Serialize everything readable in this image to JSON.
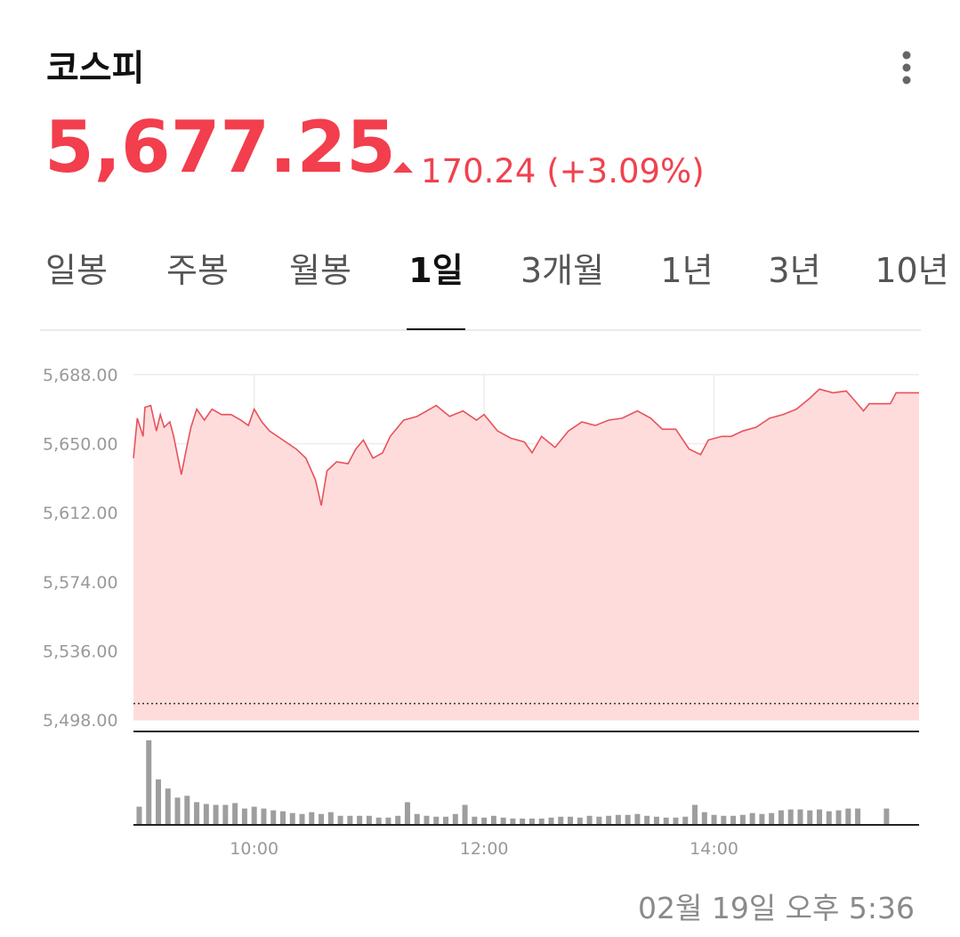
{
  "header": {
    "title": "코스피",
    "price": "5,677.25",
    "change": "170.24 (+3.09%)"
  },
  "tabs": {
    "items": [
      "일봉",
      "주봉",
      "월봉",
      "1일",
      "3개월",
      "1년",
      "3년",
      "10년"
    ],
    "selected": 3
  },
  "chart_data": {
    "type": "line",
    "x": [
      537,
      539,
      542,
      543,
      546,
      549,
      551,
      553,
      556,
      558,
      562,
      565,
      567,
      570,
      574,
      578,
      583,
      588,
      593,
      597,
      600,
      604,
      608,
      615,
      622,
      627,
      632,
      635,
      638,
      643,
      649,
      653,
      657,
      662,
      667,
      671,
      678,
      685,
      695,
      702,
      709,
      716,
      720,
      727,
      734,
      741,
      745,
      750,
      757,
      764,
      771,
      778,
      785,
      792,
      800,
      807,
      813,
      820,
      827,
      833,
      837,
      844,
      849,
      855,
      862,
      869,
      876,
      883,
      890,
      895,
      902,
      909,
      914,
      918,
      921,
      932,
      935,
      947
    ],
    "series": [
      {
        "color": "#e8525a",
        "fill": "#ffdcdc",
        "values": [
          5642,
          5664,
          5654,
          5670,
          5671,
          5657,
          5666,
          5659,
          5662,
          5654,
          5633,
          5649,
          5659,
          5669,
          5663,
          5669,
          5666,
          5666,
          5663,
          5660,
          5669,
          5662,
          5657,
          5652,
          5647,
          5642,
          5630,
          5616,
          5635,
          5640,
          5639,
          5647,
          5652,
          5642,
          5645,
          5654,
          5663,
          5665,
          5671,
          5665,
          5668,
          5663,
          5666,
          5657,
          5653,
          5651,
          5645,
          5654,
          5648,
          5657,
          5662,
          5660,
          5663,
          5664,
          5668,
          5664,
          5658,
          5658,
          5647,
          5644,
          5652,
          5654,
          5654,
          5657,
          5659,
          5664,
          5666,
          5669,
          5675,
          5680,
          5678,
          5679,
          5673,
          5668,
          5672,
          5672,
          5678,
          5678
        ]
      }
    ],
    "reference_line": 5507.01,
    "volume": {
      "color": "#9e9e9e",
      "x": [
        540,
        545,
        550,
        555,
        560,
        565,
        570,
        575,
        580,
        585,
        590,
        595,
        600,
        605,
        610,
        615,
        620,
        625,
        630,
        635,
        640,
        645,
        650,
        655,
        660,
        665,
        670,
        675,
        680,
        685,
        690,
        695,
        700,
        705,
        710,
        715,
        720,
        725,
        730,
        735,
        740,
        745,
        750,
        755,
        760,
        765,
        770,
        775,
        780,
        785,
        790,
        795,
        800,
        805,
        810,
        815,
        820,
        825,
        830,
        835,
        840,
        845,
        850,
        855,
        860,
        865,
        870,
        875,
        880,
        885,
        890,
        895,
        900,
        905,
        910,
        915,
        920,
        925,
        930
      ],
      "values": [
        20,
        93,
        50,
        40,
        30,
        32,
        25,
        23,
        22,
        22,
        24,
        18,
        20,
        18,
        16,
        15,
        13,
        12,
        14,
        12,
        14,
        10,
        10,
        10,
        10,
        8,
        8,
        10,
        25,
        12,
        10,
        9,
        9,
        12,
        22,
        9,
        8,
        10,
        8,
        7,
        7,
        7,
        7,
        8,
        9,
        9,
        8,
        10,
        9,
        10,
        11,
        11,
        12,
        10,
        9,
        8,
        8,
        9,
        22,
        14,
        11,
        10,
        10,
        11,
        13,
        12,
        13,
        16,
        17,
        17,
        16,
        17,
        15,
        16,
        18,
        18,
        null,
        null,
        18
      ]
    },
    "xlim": [
      537,
      947
    ],
    "xticks": [
      {
        "value": 600,
        "label": "10:00"
      },
      {
        "value": 720,
        "label": "12:00"
      },
      {
        "value": 840,
        "label": "14:00"
      }
    ],
    "ylim": [
      5498,
      5688
    ],
    "yticks": [
      {
        "value": 5688,
        "label": "5,688.00"
      },
      {
        "value": 5650,
        "label": "5,650.00"
      },
      {
        "value": 5612,
        "label": "5,612.00"
      },
      {
        "value": 5574,
        "label": "5,574.00"
      },
      {
        "value": 5536,
        "label": "5,536.00"
      },
      {
        "value": 5498,
        "label": "5,498.00"
      }
    ],
    "grid": true
  },
  "timestamp": "02월 19일 오후 5:36"
}
